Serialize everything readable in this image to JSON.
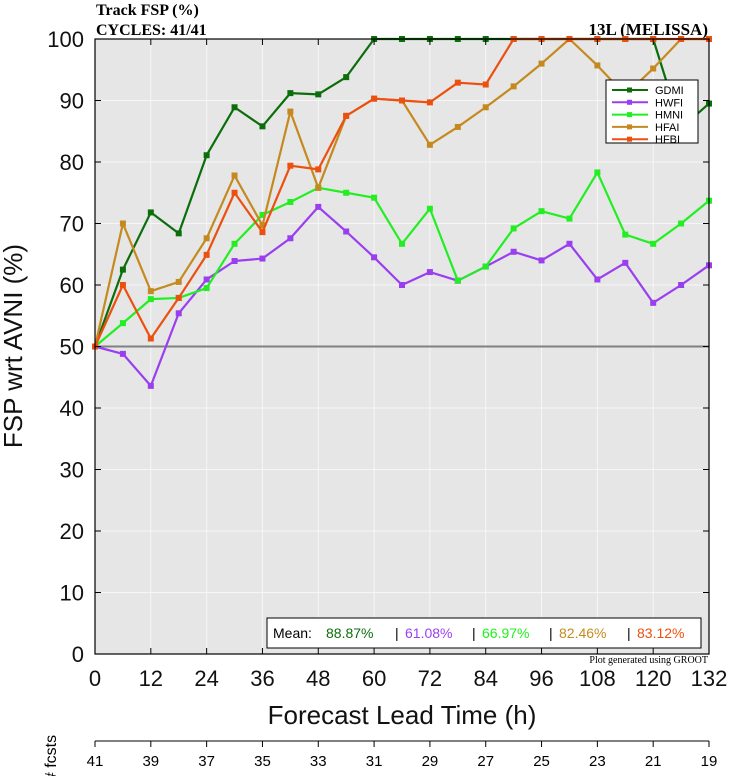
{
  "header": {
    "title_line1": "Track FSP (%)",
    "title_line2": "CYCLES: 41/41",
    "storm": "13L (MELISSA)"
  },
  "footer": {
    "credit": "Plot generated using GROOT",
    "fcsts_label": "# fcsts",
    "fcsts_values": [
      "41",
      "39",
      "37",
      "35",
      "33",
      "31",
      "29",
      "27",
      "25",
      "23",
      "21",
      "19"
    ]
  },
  "mean_box": {
    "label": "Mean:",
    "entries": [
      {
        "text": "88.87%",
        "color": "#0b6e0b"
      },
      {
        "text": "61.08%",
        "color": "#9a3ff0"
      },
      {
        "text": "66.97%",
        "color": "#22ee22"
      },
      {
        "text": "82.46%",
        "color": "#c58a1f"
      },
      {
        "text": "83.12%",
        "color": "#ec5010"
      }
    ]
  },
  "chart_data": {
    "type": "line",
    "xlabel": "Forecast Lead Time (h)",
    "ylabel": "FSP wrt AVNI (%)",
    "xlim": [
      0,
      132
    ],
    "ylim": [
      0,
      100
    ],
    "xticks": [
      0,
      12,
      24,
      36,
      48,
      60,
      72,
      84,
      96,
      108,
      120,
      132
    ],
    "yticks": [
      0,
      10,
      20,
      30,
      40,
      50,
      60,
      70,
      80,
      90,
      100
    ],
    "grid": true,
    "reference_line": 50,
    "legend_position": "top-right",
    "x": [
      0,
      6,
      12,
      18,
      24,
      30,
      36,
      42,
      48,
      54,
      60,
      66,
      72,
      78,
      84,
      90,
      96,
      102,
      108,
      114,
      120,
      126,
      132
    ],
    "series": [
      {
        "name": "GDMI",
        "color": "#0b6e0b",
        "values": [
          50,
          62.5,
          71.8,
          68.4,
          81.1,
          88.9,
          85.8,
          91.2,
          91.0,
          93.8,
          100,
          100,
          100,
          100,
          100,
          100,
          100,
          100,
          100,
          100,
          100,
          85.5,
          89.5
        ]
      },
      {
        "name": "HWFI",
        "color": "#9a3ff0",
        "values": [
          50,
          48.8,
          43.6,
          55.4,
          60.9,
          63.9,
          64.3,
          67.6,
          72.7,
          68.7,
          64.5,
          60.0,
          62.1,
          60.7,
          63.0,
          65.4,
          64.0,
          66.7,
          60.9,
          63.6,
          57.1,
          60.0,
          63.2
        ]
      },
      {
        "name": "HMNI",
        "color": "#22ee22",
        "values": [
          50,
          53.8,
          57.7,
          57.9,
          59.5,
          66.7,
          71.4,
          73.5,
          75.8,
          75.0,
          74.2,
          66.7,
          72.4,
          60.7,
          63.0,
          69.2,
          72.0,
          70.8,
          78.3,
          68.2,
          66.7,
          70.0,
          73.7
        ]
      },
      {
        "name": "HFAI",
        "color": "#c58a1f",
        "values": [
          50,
          70.0,
          59.0,
          60.5,
          67.6,
          77.8,
          69.7,
          88.2,
          75.8,
          87.5,
          90.3,
          90.0,
          82.8,
          85.7,
          88.9,
          92.3,
          96.0,
          100,
          95.7,
          90.9,
          95.2,
          100,
          100
        ]
      },
      {
        "name": "HFBI",
        "color": "#ec5010",
        "values": [
          50,
          60.0,
          51.3,
          57.9,
          64.9,
          75.0,
          68.6,
          79.4,
          78.8,
          87.5,
          90.3,
          90.0,
          89.7,
          92.9,
          92.6,
          100,
          100,
          100,
          100,
          100,
          100,
          100,
          100
        ]
      }
    ]
  }
}
